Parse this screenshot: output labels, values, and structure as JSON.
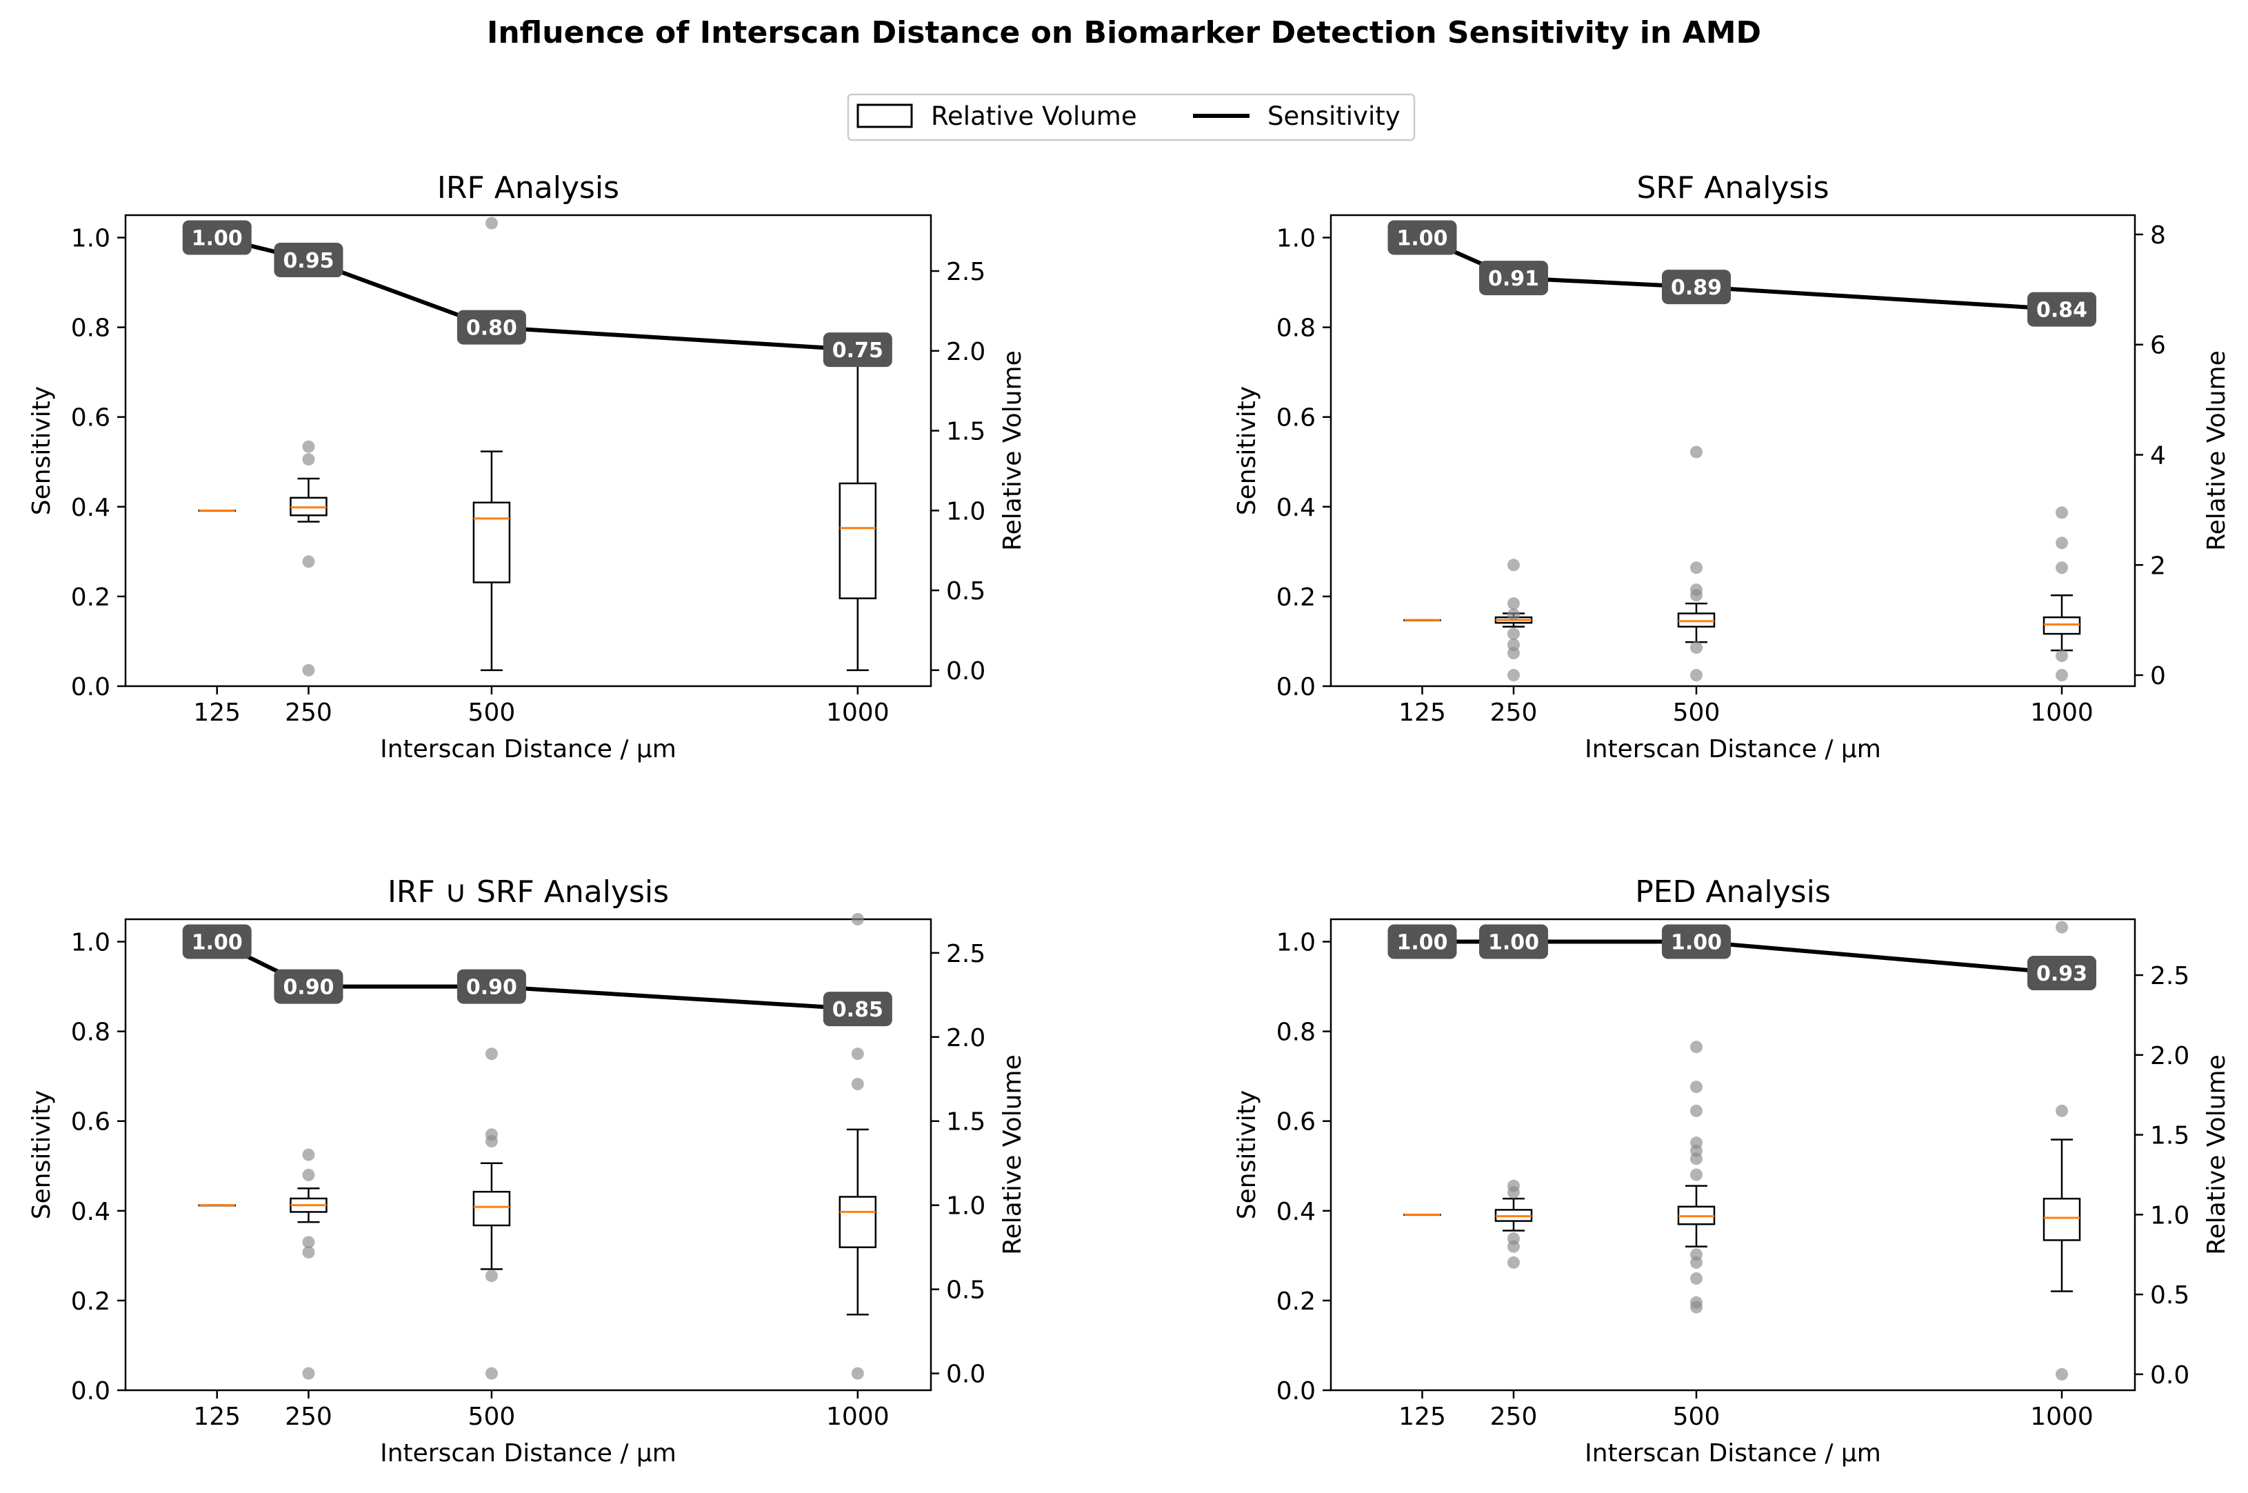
{
  "title": "Influence of Interscan Distance on Biomarker Detection Sensitivity in AMD",
  "legend": [
    {
      "label": "Relative Volume",
      "kind": "box"
    },
    {
      "label": "Sensitivity",
      "kind": "line"
    }
  ],
  "colors": {
    "line": "#000000",
    "median": "#ff7f0e",
    "label_box": "#555555",
    "outlier": "#8a8a8a"
  },
  "chart_data": [
    {
      "type": "line+box",
      "title": "IRF Analysis",
      "xlabel": "Interscan Distance / µm",
      "ylabel": "Sensitivity",
      "y2label": "Relative Volume",
      "x": [
        125,
        250,
        500,
        1000
      ],
      "xlim": [
        0,
        1100
      ],
      "ylim": [
        0,
        1.05
      ],
      "yticks": [
        0.0,
        0.2,
        0.4,
        0.6,
        0.8,
        1.0
      ],
      "y2lim": [
        -0.1,
        2.85
      ],
      "y2ticks": [
        0.0,
        0.5,
        1.0,
        1.5,
        2.0,
        2.5
      ],
      "sensitivity": [
        1.0,
        0.95,
        0.8,
        0.75
      ],
      "sensitivity_labels": [
        "1.00",
        "0.95",
        "0.80",
        "0.75"
      ],
      "boxes": [
        {
          "x": 125,
          "q1": 1.0,
          "median": 1.0,
          "q3": 1.0,
          "whislo": 1.0,
          "whishi": 1.0,
          "fliers": []
        },
        {
          "x": 250,
          "q1": 0.97,
          "median": 1.02,
          "q3": 1.08,
          "whislo": 0.93,
          "whishi": 1.2,
          "fliers": [
            1.4,
            1.32,
            0.68,
            0.0
          ]
        },
        {
          "x": 500,
          "q1": 0.55,
          "median": 0.95,
          "q3": 1.05,
          "whislo": 0.0,
          "whishi": 1.37,
          "fliers": [
            2.8
          ]
        },
        {
          "x": 1000,
          "q1": 0.45,
          "median": 0.89,
          "q3": 1.17,
          "whislo": 0.0,
          "whishi": 1.92,
          "fliers": []
        }
      ]
    },
    {
      "type": "line+box",
      "title": "SRF Analysis",
      "xlabel": "Interscan Distance / µm",
      "ylabel": "Sensitivity",
      "y2label": "Relative Volume",
      "x": [
        125,
        250,
        500,
        1000
      ],
      "xlim": [
        0,
        1100
      ],
      "ylim": [
        0,
        1.05
      ],
      "yticks": [
        0.0,
        0.2,
        0.4,
        0.6,
        0.8,
        1.0
      ],
      "y2lim": [
        -0.2,
        8.35
      ],
      "y2ticks": [
        0,
        2,
        4,
        6,
        8
      ],
      "sensitivity": [
        1.0,
        0.91,
        0.89,
        0.84
      ],
      "sensitivity_labels": [
        "1.00",
        "0.91",
        "0.89",
        "0.84"
      ],
      "boxes": [
        {
          "x": 125,
          "q1": 1.0,
          "median": 1.0,
          "q3": 1.0,
          "whislo": 1.0,
          "whishi": 1.0,
          "fliers": []
        },
        {
          "x": 250,
          "q1": 0.95,
          "median": 1.0,
          "q3": 1.05,
          "whislo": 0.88,
          "whishi": 1.12,
          "fliers": [
            2.0,
            1.3,
            1.1,
            0.75,
            0.4,
            0.0,
            0.55
          ]
        },
        {
          "x": 500,
          "q1": 0.88,
          "median": 0.98,
          "q3": 1.12,
          "whislo": 0.6,
          "whishi": 1.3,
          "fliers": [
            4.05,
            1.95,
            1.55,
            1.45,
            0.5,
            0.0
          ]
        },
        {
          "x": 1000,
          "q1": 0.75,
          "median": 0.92,
          "q3": 1.05,
          "whislo": 0.45,
          "whishi": 1.45,
          "fliers": [
            2.95,
            2.4,
            1.95,
            0.35,
            0.0
          ]
        }
      ]
    },
    {
      "type": "line+box",
      "title": "IRF ∪ SRF Analysis",
      "xlabel": "Interscan Distance / µm",
      "ylabel": "Sensitivity",
      "y2label": "Relative Volume",
      "x": [
        125,
        250,
        500,
        1000
      ],
      "xlim": [
        0,
        1100
      ],
      "ylim": [
        0,
        1.05
      ],
      "yticks": [
        0.0,
        0.2,
        0.4,
        0.6,
        0.8,
        1.0
      ],
      "y2lim": [
        -0.1,
        2.7
      ],
      "y2ticks": [
        0.0,
        0.5,
        1.0,
        1.5,
        2.0,
        2.5
      ],
      "sensitivity": [
        1.0,
        0.9,
        0.9,
        0.85
      ],
      "sensitivity_labels": [
        "1.00",
        "0.90",
        "0.90",
        "0.85"
      ],
      "boxes": [
        {
          "x": 125,
          "q1": 1.0,
          "median": 1.0,
          "q3": 1.0,
          "whislo": 1.0,
          "whishi": 1.0,
          "fliers": []
        },
        {
          "x": 250,
          "q1": 0.96,
          "median": 1.0,
          "q3": 1.04,
          "whislo": 0.9,
          "whishi": 1.1,
          "fliers": [
            1.3,
            1.18,
            0.78,
            0.72,
            0.0
          ]
        },
        {
          "x": 500,
          "q1": 0.88,
          "median": 0.99,
          "q3": 1.08,
          "whislo": 0.62,
          "whishi": 1.25,
          "fliers": [
            1.9,
            1.42,
            1.38,
            0.58,
            0.0
          ]
        },
        {
          "x": 1000,
          "q1": 0.75,
          "median": 0.96,
          "q3": 1.05,
          "whislo": 0.35,
          "whishi": 1.45,
          "fliers": [
            2.7,
            1.9,
            1.72,
            0.0
          ]
        }
      ]
    },
    {
      "type": "line+box",
      "title": "PED Analysis",
      "xlabel": "Interscan Distance / µm",
      "ylabel": "Sensitivity",
      "y2label": "Relative Volume",
      "x": [
        125,
        250,
        500,
        1000
      ],
      "xlim": [
        0,
        1100
      ],
      "ylim": [
        0,
        1.05
      ],
      "yticks": [
        0.0,
        0.2,
        0.4,
        0.6,
        0.8,
        1.0
      ],
      "y2lim": [
        -0.1,
        2.85
      ],
      "y2ticks": [
        0.0,
        0.5,
        1.0,
        1.5,
        2.0,
        2.5
      ],
      "sensitivity": [
        1.0,
        1.0,
        1.0,
        0.93
      ],
      "sensitivity_labels": [
        "1.00",
        "1.00",
        "1.00",
        "0.93"
      ],
      "boxes": [
        {
          "x": 125,
          "q1": 1.0,
          "median": 1.0,
          "q3": 1.0,
          "whislo": 1.0,
          "whishi": 1.0,
          "fliers": []
        },
        {
          "x": 250,
          "q1": 0.96,
          "median": 0.99,
          "q3": 1.03,
          "whislo": 0.9,
          "whishi": 1.1,
          "fliers": [
            1.18,
            1.14,
            0.85,
            0.8,
            0.7
          ]
        },
        {
          "x": 500,
          "q1": 0.94,
          "median": 0.99,
          "q3": 1.05,
          "whislo": 0.8,
          "whishi": 1.18,
          "fliers": [
            2.05,
            1.8,
            1.65,
            1.45,
            1.4,
            1.35,
            1.25,
            0.75,
            0.7,
            0.6,
            0.45,
            0.42
          ]
        },
        {
          "x": 1000,
          "q1": 0.84,
          "median": 0.98,
          "q3": 1.1,
          "whislo": 0.52,
          "whishi": 1.47,
          "fliers": [
            1.65,
            2.8,
            0.0
          ]
        }
      ]
    }
  ]
}
